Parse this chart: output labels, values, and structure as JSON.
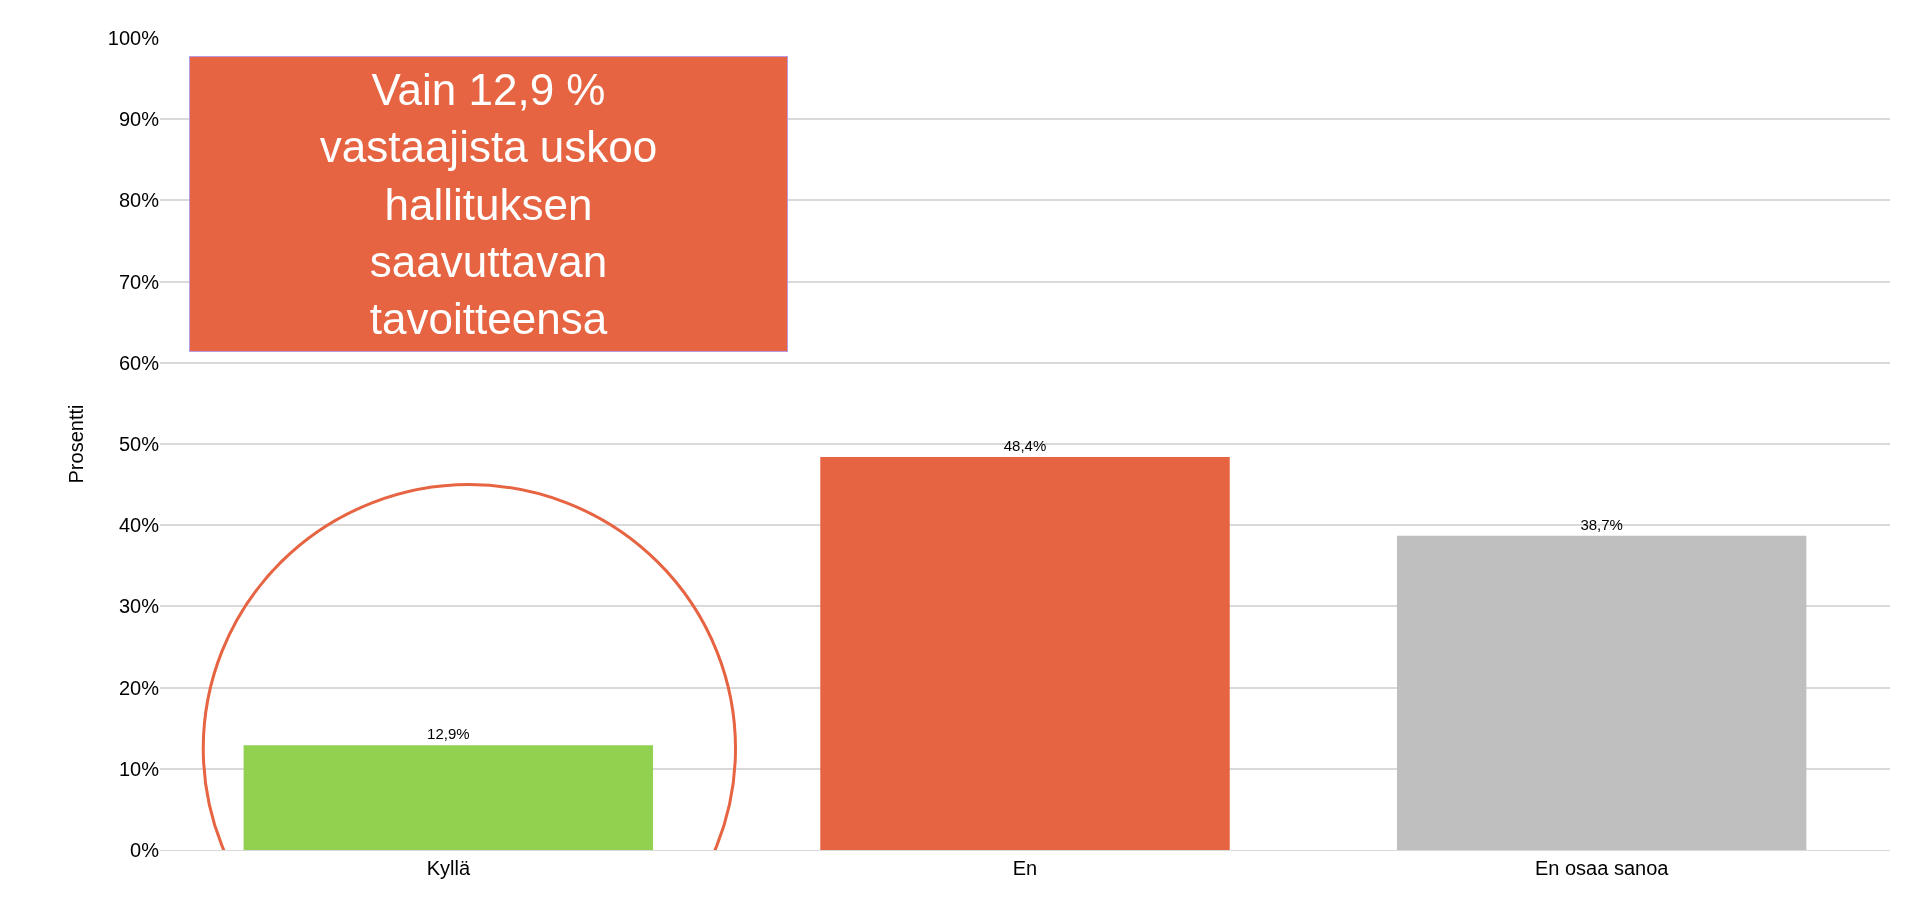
{
  "chart_data": {
    "type": "bar",
    "ylabel": "Prosentti",
    "categories": [
      "Kyllä",
      "En",
      "En osaa sanoa"
    ],
    "values": [
      12.9,
      48.4,
      38.7
    ],
    "colors": [
      "#92d050",
      "#e66442",
      "#bfbfbf"
    ],
    "value_labels": [
      "12,9%",
      "48,4%",
      "38,7%"
    ],
    "ylim": [
      0,
      100
    ],
    "yticks": [
      {
        "value": 0,
        "label": "0%"
      },
      {
        "value": 10,
        "label": "10%"
      },
      {
        "value": 20,
        "label": "20%"
      },
      {
        "value": 30,
        "label": "30%"
      },
      {
        "value": 40,
        "label": "40%"
      },
      {
        "value": 50,
        "label": "50%"
      },
      {
        "value": 60,
        "label": "60%"
      },
      {
        "value": 70,
        "label": "70%"
      },
      {
        "value": 80,
        "label": "80%"
      },
      {
        "value": 90,
        "label": "90%"
      },
      {
        "value": 100,
        "label": "100%"
      }
    ],
    "grid": "y",
    "annotations": [
      "Vain 12,9 % vastaajista uskoo hallituksen saavuttavan tavoitteensa"
    ]
  }
}
